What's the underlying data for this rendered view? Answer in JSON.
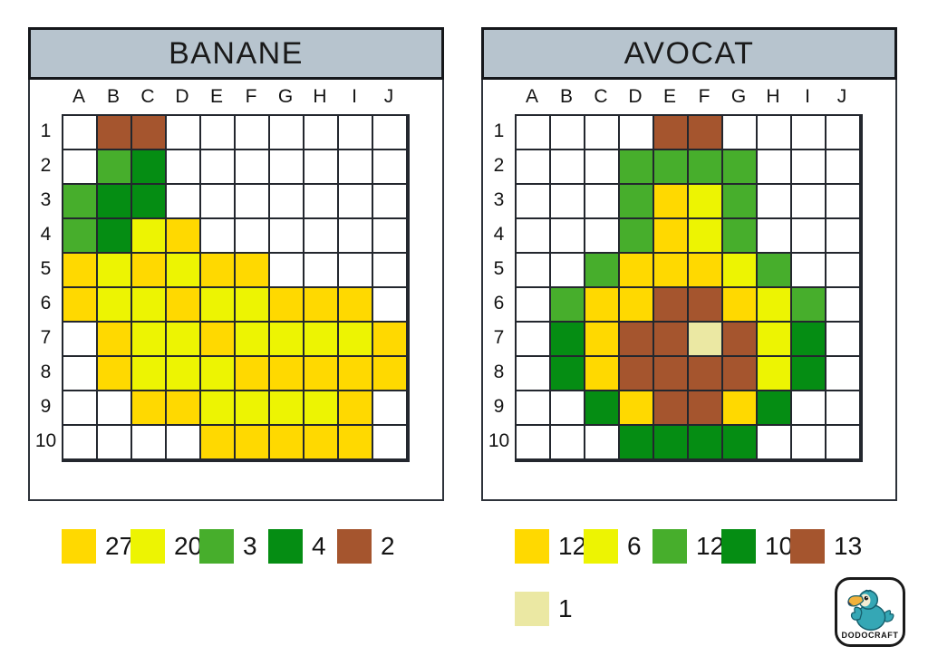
{
  "palette": {
    "O": "#ffd900",
    "Y": "#edf402",
    "G": "#47ae2c",
    "D": "#058d13",
    "R": "#a5552e",
    "C": "#ebe8a3",
    ".": "#ffffff"
  },
  "palette_names": {
    "O": "gold-yellow",
    "Y": "bright-yellow",
    "G": "medium-green",
    "D": "dark-green",
    "R": "brown",
    "C": "cream",
    ".": "white"
  },
  "panels": [
    {
      "title": "BANANE",
      "columns": [
        "A",
        "B",
        "C",
        "D",
        "E",
        "F",
        "G",
        "H",
        "I",
        "J"
      ],
      "rows": [
        "1",
        "2",
        "3",
        "4",
        "5",
        "6",
        "7",
        "8",
        "9",
        "10"
      ],
      "grid": [
        ".RR.......",
        ".GD.......",
        "GDD.......",
        "GDYO......",
        "OYOYOO....",
        "OYYOYYOOO.",
        ".OYYOYYYYO",
        ".OYYYOOOOO",
        "..OOYYYYO.",
        "....OOOOO."
      ],
      "legend_rows": [
        [
          {
            "color": "O",
            "count": "27"
          },
          {
            "color": "Y",
            "count": "20"
          },
          {
            "color": "G",
            "count": "3"
          },
          {
            "color": "D",
            "count": "4"
          },
          {
            "color": "R",
            "count": "2"
          }
        ]
      ]
    },
    {
      "title": "AVOCAT",
      "columns": [
        "A",
        "B",
        "C",
        "D",
        "E",
        "F",
        "G",
        "H",
        "I",
        "J"
      ],
      "rows": [
        "1",
        "2",
        "3",
        "4",
        "5",
        "6",
        "7",
        "8",
        "9",
        "10"
      ],
      "grid": [
        "....RR....",
        "...GGGG...",
        "...GOYG...",
        "...GOYG...",
        "..GOOOYG..",
        ".GOORROYG.",
        ".DORRCRYD.",
        ".DORRRRYD.",
        "..DORROD..",
        "...DDDD..."
      ],
      "legend_rows": [
        [
          {
            "color": "O",
            "count": "12"
          },
          {
            "color": "Y",
            "count": "6"
          },
          {
            "color": "G",
            "count": "12"
          },
          {
            "color": "D",
            "count": "10"
          },
          {
            "color": "R",
            "count": "13"
          }
        ],
        [
          {
            "color": "C",
            "count": "1"
          }
        ]
      ]
    }
  ],
  "logo": {
    "brand": "DODOCRAFT"
  },
  "theme": {
    "title_bar_bg": "#b7c4ce",
    "grid_line": "#23272e"
  }
}
